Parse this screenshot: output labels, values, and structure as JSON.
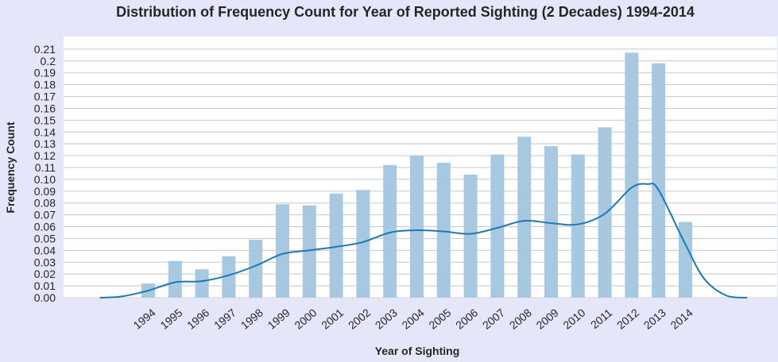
{
  "chart_data": {
    "type": "bar",
    "title": "Distribution of Frequency Count for Year of Reported Sighting (2 Decades) 1994-2014",
    "xlabel": "Year of Sighting",
    "ylabel": "Frequency Count",
    "categories": [
      "1994",
      "1995",
      "1996",
      "1997",
      "1998",
      "1999",
      "2000",
      "2001",
      "2002",
      "2003",
      "2004",
      "2005",
      "2006",
      "2007",
      "2008",
      "2009",
      "2010",
      "2011",
      "2012",
      "2013",
      "2014"
    ],
    "values": [
      0.012,
      0.031,
      0.024,
      0.035,
      0.049,
      0.079,
      0.078,
      0.088,
      0.091,
      0.112,
      0.12,
      0.114,
      0.104,
      0.121,
      0.136,
      0.128,
      0.121,
      0.144,
      0.207,
      0.198,
      0.064
    ],
    "density_curve": {
      "x": [
        1992.2,
        1993,
        1994,
        1995,
        1996,
        1997,
        1998,
        1999,
        2000,
        2001,
        2002,
        2003,
        2004,
        2005,
        2006,
        2007,
        2008,
        2009,
        2010,
        2011,
        2012,
        2012.6,
        2013,
        2014,
        2014.7,
        2015.5,
        2016.3
      ],
      "y": [
        0.0,
        0.001,
        0.006,
        0.013,
        0.014,
        0.019,
        0.027,
        0.037,
        0.04,
        0.043,
        0.047,
        0.055,
        0.057,
        0.056,
        0.054,
        0.059,
        0.065,
        0.063,
        0.062,
        0.071,
        0.093,
        0.096,
        0.091,
        0.045,
        0.016,
        0.002,
        0.0
      ]
    },
    "ylim": [
      0,
      0.215
    ],
    "yticks": [
      "0.00",
      "0.01",
      "0.02",
      "0.03",
      "0.04",
      "0.05",
      "0.06",
      "0.07",
      "0.08",
      "0.09",
      "0.10",
      "0.11",
      "0.12",
      "0.13",
      "0.14",
      "0.15",
      "0.16",
      "0.17",
      "0.18",
      "0.19",
      "0.2",
      "0.21"
    ],
    "grid": true,
    "colors": {
      "background": "#e6e6fa",
      "plot_background": "#ffffff",
      "bar": "#a6c8e1",
      "line": "#1f77b4",
      "grid": "#c8c8c8"
    }
  }
}
